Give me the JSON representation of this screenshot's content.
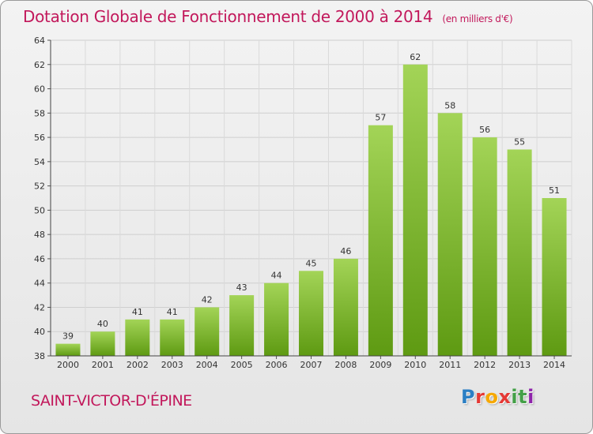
{
  "header": {
    "title": "Dotation Globale de Fonctionnement de 2000 à 2014",
    "unit": "(en milliers d'€)"
  },
  "footer": {
    "commune": "SAINT-VICTOR-D'ÉPINE",
    "brand_letters": [
      "P",
      "r",
      "o",
      "x",
      "i",
      "t",
      "i"
    ],
    "brand_colors": [
      "#2b7fc4",
      "#e53935",
      "#f6a800",
      "#e53935",
      "#43a047",
      "#43a047",
      "#8e24aa"
    ]
  },
  "colors": {
    "title": "#c2185b",
    "bar_top": "#a3d457",
    "bar_bottom": "#5e9a12"
  },
  "chart_data": {
    "type": "bar",
    "categories": [
      "2000",
      "2001",
      "2002",
      "2003",
      "2004",
      "2005",
      "2006",
      "2007",
      "2008",
      "2009",
      "2010",
      "2011",
      "2012",
      "2013",
      "2014"
    ],
    "values": [
      39,
      40,
      41,
      41,
      42,
      43,
      44,
      45,
      46,
      57,
      62,
      58,
      56,
      55,
      51
    ],
    "ylim": [
      38,
      64
    ],
    "yticks": [
      38,
      40,
      42,
      44,
      46,
      48,
      50,
      52,
      54,
      56,
      58,
      60,
      62,
      64
    ],
    "grid": true,
    "xlabel": "",
    "ylabel": ""
  }
}
